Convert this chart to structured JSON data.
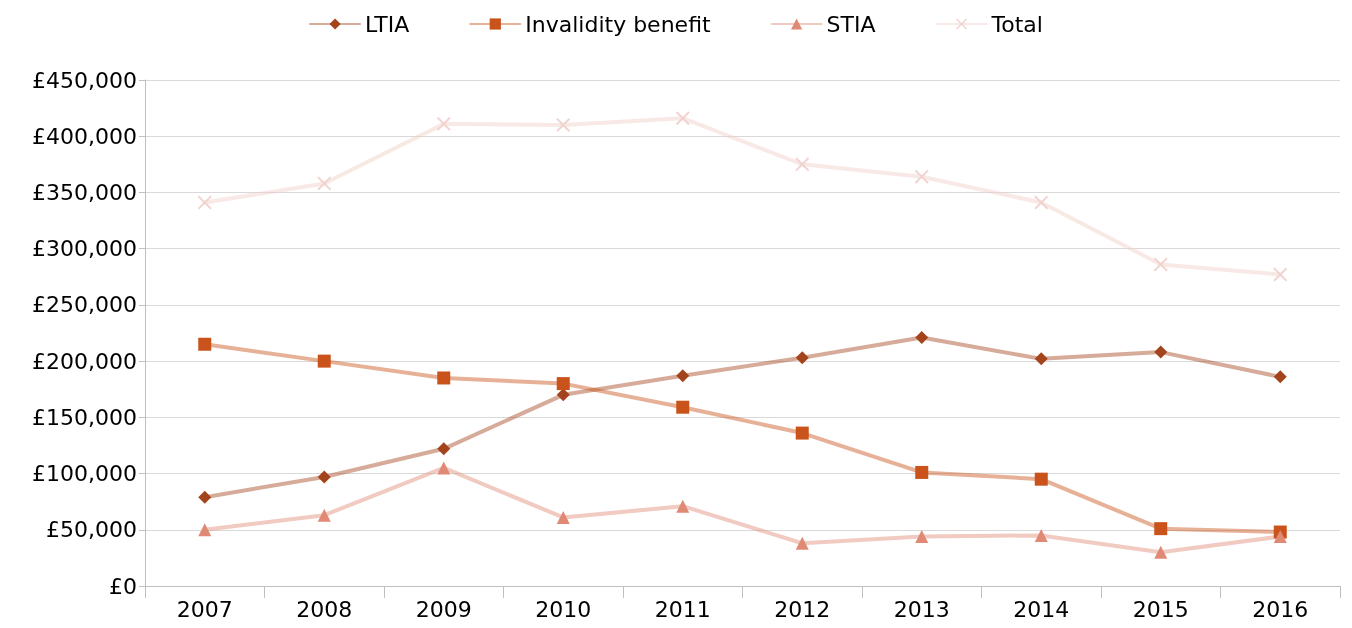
{
  "chart_data": {
    "type": "line",
    "categories": [
      "2007",
      "2008",
      "2009",
      "2010",
      "2011",
      "2012",
      "2013",
      "2014",
      "2015",
      "2016"
    ],
    "series": [
      {
        "name": "LTIA",
        "color": "#a4441c",
        "marker": "diamond",
        "values": [
          79000,
          97000,
          122000,
          170000,
          187000,
          203000,
          221000,
          202000,
          208000,
          186000
        ]
      },
      {
        "name": "Invalidity benefit",
        "color": "#c9531a",
        "marker": "square",
        "values": [
          215000,
          200000,
          185000,
          180000,
          159000,
          136000,
          101000,
          95000,
          51000,
          48000
        ]
      },
      {
        "name": "STIA",
        "color": "#e08a75",
        "marker": "triangle",
        "values": [
          50000,
          63000,
          105000,
          61000,
          71000,
          38000,
          44000,
          45000,
          30000,
          44000
        ]
      },
      {
        "name": "Total",
        "color": "#f0cfca",
        "marker": "cross",
        "values": [
          341000,
          358000,
          411000,
          410000,
          416000,
          375000,
          364000,
          341000,
          286000,
          277000
        ]
      }
    ],
    "ylim": [
      0,
      450000
    ],
    "yticks": [
      {
        "value": 0,
        "label": "£0"
      },
      {
        "value": 50000,
        "label": "£50,000"
      },
      {
        "value": 100000,
        "label": "£100,000"
      },
      {
        "value": 150000,
        "label": "£150,000"
      },
      {
        "value": 200000,
        "label": "£200,000"
      },
      {
        "value": 250000,
        "label": "£250,000"
      },
      {
        "value": 300000,
        "label": "£300,000"
      },
      {
        "value": 350000,
        "label": "£350,000"
      },
      {
        "value": 400000,
        "label": "£400,000"
      },
      {
        "value": 450000,
        "label": "£450,000"
      }
    ],
    "grid": "y",
    "legend": "top"
  }
}
